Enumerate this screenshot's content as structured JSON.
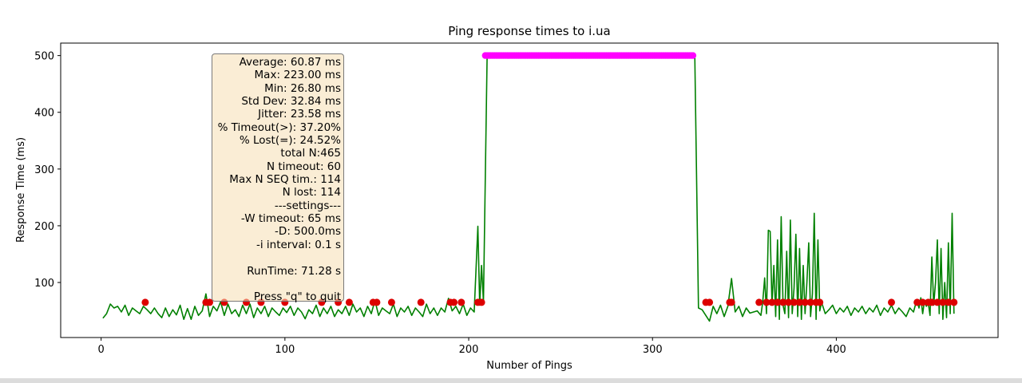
{
  "chart_data": {
    "type": "line",
    "title": "Ping response times to i.ua",
    "xlabel": "Number of Pings",
    "ylabel": "Response Time (ms)",
    "xlim": [
      -22,
      488
    ],
    "ylim": [
      3,
      522
    ],
    "xticks": [
      0,
      100,
      200,
      300,
      400
    ],
    "yticks": [
      100,
      200,
      300,
      400,
      500
    ],
    "grid": false,
    "colors": {
      "line": "#008000",
      "timeout": "#dd0000",
      "lost": "#ff00ff"
    },
    "series": [
      {
        "role": "response",
        "points": [
          [
            1,
            37
          ],
          [
            3,
            45
          ],
          [
            5,
            62
          ],
          [
            7,
            55
          ],
          [
            9,
            58
          ],
          [
            11,
            48
          ],
          [
            13,
            60
          ],
          [
            15,
            42
          ],
          [
            17,
            55
          ],
          [
            19,
            50
          ],
          [
            21,
            45
          ],
          [
            23,
            58
          ],
          [
            25,
            52
          ],
          [
            27,
            45
          ],
          [
            29,
            55
          ],
          [
            31,
            45
          ],
          [
            33,
            38
          ],
          [
            35,
            55
          ],
          [
            37,
            40
          ],
          [
            39,
            52
          ],
          [
            41,
            43
          ],
          [
            43,
            60
          ],
          [
            45,
            35
          ],
          [
            47,
            54
          ],
          [
            49,
            35
          ],
          [
            51,
            58
          ],
          [
            53,
            42
          ],
          [
            55,
            50
          ],
          [
            57,
            80
          ],
          [
            59,
            40
          ],
          [
            61,
            58
          ],
          [
            63,
            50
          ],
          [
            65,
            66
          ],
          [
            67,
            42
          ],
          [
            69,
            62
          ],
          [
            71,
            45
          ],
          [
            73,
            52
          ],
          [
            75,
            40
          ],
          [
            77,
            60
          ],
          [
            79,
            45
          ],
          [
            81,
            62
          ],
          [
            83,
            38
          ],
          [
            85,
            55
          ],
          [
            87,
            45
          ],
          [
            89,
            58
          ],
          [
            91,
            40
          ],
          [
            93,
            55
          ],
          [
            95,
            48
          ],
          [
            97,
            42
          ],
          [
            99,
            55
          ],
          [
            101,
            47
          ],
          [
            103,
            58
          ],
          [
            105,
            42
          ],
          [
            107,
            55
          ],
          [
            109,
            48
          ],
          [
            111,
            36
          ],
          [
            113,
            52
          ],
          [
            115,
            45
          ],
          [
            117,
            60
          ],
          [
            119,
            40
          ],
          [
            121,
            55
          ],
          [
            123,
            45
          ],
          [
            125,
            58
          ],
          [
            127,
            40
          ],
          [
            129,
            52
          ],
          [
            131,
            45
          ],
          [
            133,
            58
          ],
          [
            135,
            42
          ],
          [
            137,
            62
          ],
          [
            139,
            48
          ],
          [
            141,
            55
          ],
          [
            143,
            40
          ],
          [
            145,
            58
          ],
          [
            147,
            45
          ],
          [
            149,
            68
          ],
          [
            151,
            42
          ],
          [
            153,
            55
          ],
          [
            155,
            50
          ],
          [
            157,
            45
          ],
          [
            159,
            62
          ],
          [
            161,
            40
          ],
          [
            163,
            55
          ],
          [
            165,
            48
          ],
          [
            167,
            58
          ],
          [
            169,
            42
          ],
          [
            171,
            55
          ],
          [
            173,
            48
          ],
          [
            175,
            40
          ],
          [
            177,
            62
          ],
          [
            179,
            45
          ],
          [
            181,
            55
          ],
          [
            183,
            42
          ],
          [
            185,
            55
          ],
          [
            187,
            48
          ],
          [
            189,
            72
          ],
          [
            191,
            50
          ],
          [
            193,
            58
          ],
          [
            195,
            45
          ],
          [
            197,
            62
          ],
          [
            199,
            42
          ],
          [
            201,
            55
          ],
          [
            203,
            48
          ],
          [
            205,
            199
          ],
          [
            206,
            60
          ],
          [
            207,
            130
          ],
          [
            208,
            66
          ],
          [
            210,
            500
          ],
          [
            212,
            500
          ],
          [
            321,
            500
          ],
          [
            323,
            500
          ],
          [
            325,
            55
          ],
          [
            327,
            52
          ],
          [
            329,
            42
          ],
          [
            331,
            32
          ],
          [
            333,
            58
          ],
          [
            335,
            45
          ],
          [
            337,
            60
          ],
          [
            339,
            40
          ],
          [
            341,
            58
          ],
          [
            343,
            107
          ],
          [
            345,
            48
          ],
          [
            347,
            58
          ],
          [
            349,
            40
          ],
          [
            351,
            55
          ],
          [
            353,
            46
          ],
          [
            355,
            48
          ],
          [
            357,
            50
          ],
          [
            359,
            42
          ],
          [
            360,
            66
          ],
          [
            361,
            108
          ],
          [
            362,
            45
          ],
          [
            363,
            192
          ],
          [
            364,
            190
          ],
          [
            365,
            60
          ],
          [
            366,
            130
          ],
          [
            367,
            40
          ],
          [
            368,
            175
          ],
          [
            369,
            35
          ],
          [
            370,
            216
          ],
          [
            371,
            60
          ],
          [
            372,
            45
          ],
          [
            373,
            155
          ],
          [
            374,
            38
          ],
          [
            375,
            210
          ],
          [
            376,
            45
          ],
          [
            377,
            90
          ],
          [
            378,
            185
          ],
          [
            379,
            40
          ],
          [
            380,
            160
          ],
          [
            381,
            35
          ],
          [
            382,
            130
          ],
          [
            383,
            45
          ],
          [
            384,
            100
          ],
          [
            385,
            170
          ],
          [
            386,
            40
          ],
          [
            387,
            80
          ],
          [
            388,
            222
          ],
          [
            389,
            35
          ],
          [
            390,
            175
          ],
          [
            391,
            50
          ],
          [
            392,
            65
          ],
          [
            394,
            45
          ],
          [
            396,
            52
          ],
          [
            398,
            60
          ],
          [
            400,
            45
          ],
          [
            402,
            55
          ],
          [
            404,
            48
          ],
          [
            406,
            58
          ],
          [
            408,
            42
          ],
          [
            410,
            55
          ],
          [
            412,
            48
          ],
          [
            414,
            58
          ],
          [
            416,
            45
          ],
          [
            418,
            55
          ],
          [
            420,
            48
          ],
          [
            422,
            60
          ],
          [
            424,
            42
          ],
          [
            426,
            55
          ],
          [
            428,
            48
          ],
          [
            430,
            60
          ],
          [
            432,
            45
          ],
          [
            434,
            55
          ],
          [
            436,
            48
          ],
          [
            438,
            40
          ],
          [
            440,
            55
          ],
          [
            442,
            48
          ],
          [
            443,
            60
          ],
          [
            444,
            68
          ],
          [
            445,
            55
          ],
          [
            446,
            73
          ],
          [
            447,
            45
          ],
          [
            448,
            68
          ],
          [
            449,
            58
          ],
          [
            450,
            65
          ],
          [
            451,
            42
          ],
          [
            452,
            145
          ],
          [
            453,
            60
          ],
          [
            454,
            100
          ],
          [
            455,
            175
          ],
          [
            456,
            45
          ],
          [
            457,
            160
          ],
          [
            458,
            35
          ],
          [
            459,
            100
          ],
          [
            460,
            38
          ],
          [
            461,
            170
          ],
          [
            462,
            45
          ],
          [
            463,
            222
          ],
          [
            464,
            45
          ]
        ]
      },
      {
        "role": "timeout",
        "points": [
          [
            24,
            65
          ],
          [
            57,
            65
          ],
          [
            59,
            65
          ],
          [
            67,
            65
          ],
          [
            79,
            65
          ],
          [
            87,
            65
          ],
          [
            100,
            65
          ],
          [
            120,
            65
          ],
          [
            129,
            65
          ],
          [
            135,
            65
          ],
          [
            148,
            65
          ],
          [
            150,
            65
          ],
          [
            158,
            65
          ],
          [
            174,
            65
          ],
          [
            190,
            65
          ],
          [
            192,
            65
          ],
          [
            196,
            65
          ],
          [
            205,
            65
          ],
          [
            207,
            65
          ],
          [
            329,
            65
          ],
          [
            331,
            65
          ],
          [
            342,
            65
          ],
          [
            343,
            65
          ],
          [
            358,
            65
          ],
          [
            362,
            65
          ],
          [
            365,
            65
          ],
          [
            368,
            65
          ],
          [
            371,
            65
          ],
          [
            374,
            65
          ],
          [
            377,
            65
          ],
          [
            380,
            65
          ],
          [
            383,
            65
          ],
          [
            386,
            65
          ],
          [
            389,
            65
          ],
          [
            391,
            65
          ],
          [
            430,
            65
          ],
          [
            444,
            65
          ],
          [
            447,
            65
          ],
          [
            450,
            65
          ],
          [
            452,
            65
          ],
          [
            455,
            65
          ],
          [
            458,
            65
          ],
          [
            461,
            65
          ],
          [
            464,
            65
          ]
        ]
      },
      {
        "role": "lost",
        "x_range": [
          209,
          322
        ],
        "y": 500,
        "count": 114
      }
    ]
  },
  "stats": {
    "lines": [
      "Average: 60.87 ms",
      "Max: 223.00 ms",
      "Min: 26.80 ms",
      "Std Dev: 32.84 ms",
      "Jitter: 23.58 ms",
      "% Timeout(>): 37.20%",
      "% Lost(=): 24.52%",
      "total N:465",
      "N timeout: 60",
      "Max N SEQ tim.: 114",
      "N lost: 114",
      "---settings---",
      "-W timeout: 65 ms",
      "-D: 500.0ms",
      "-i interval: 0.1 s",
      "",
      "RunTime: 71.28 s",
      "",
      "Press \"q\" to quit"
    ]
  }
}
